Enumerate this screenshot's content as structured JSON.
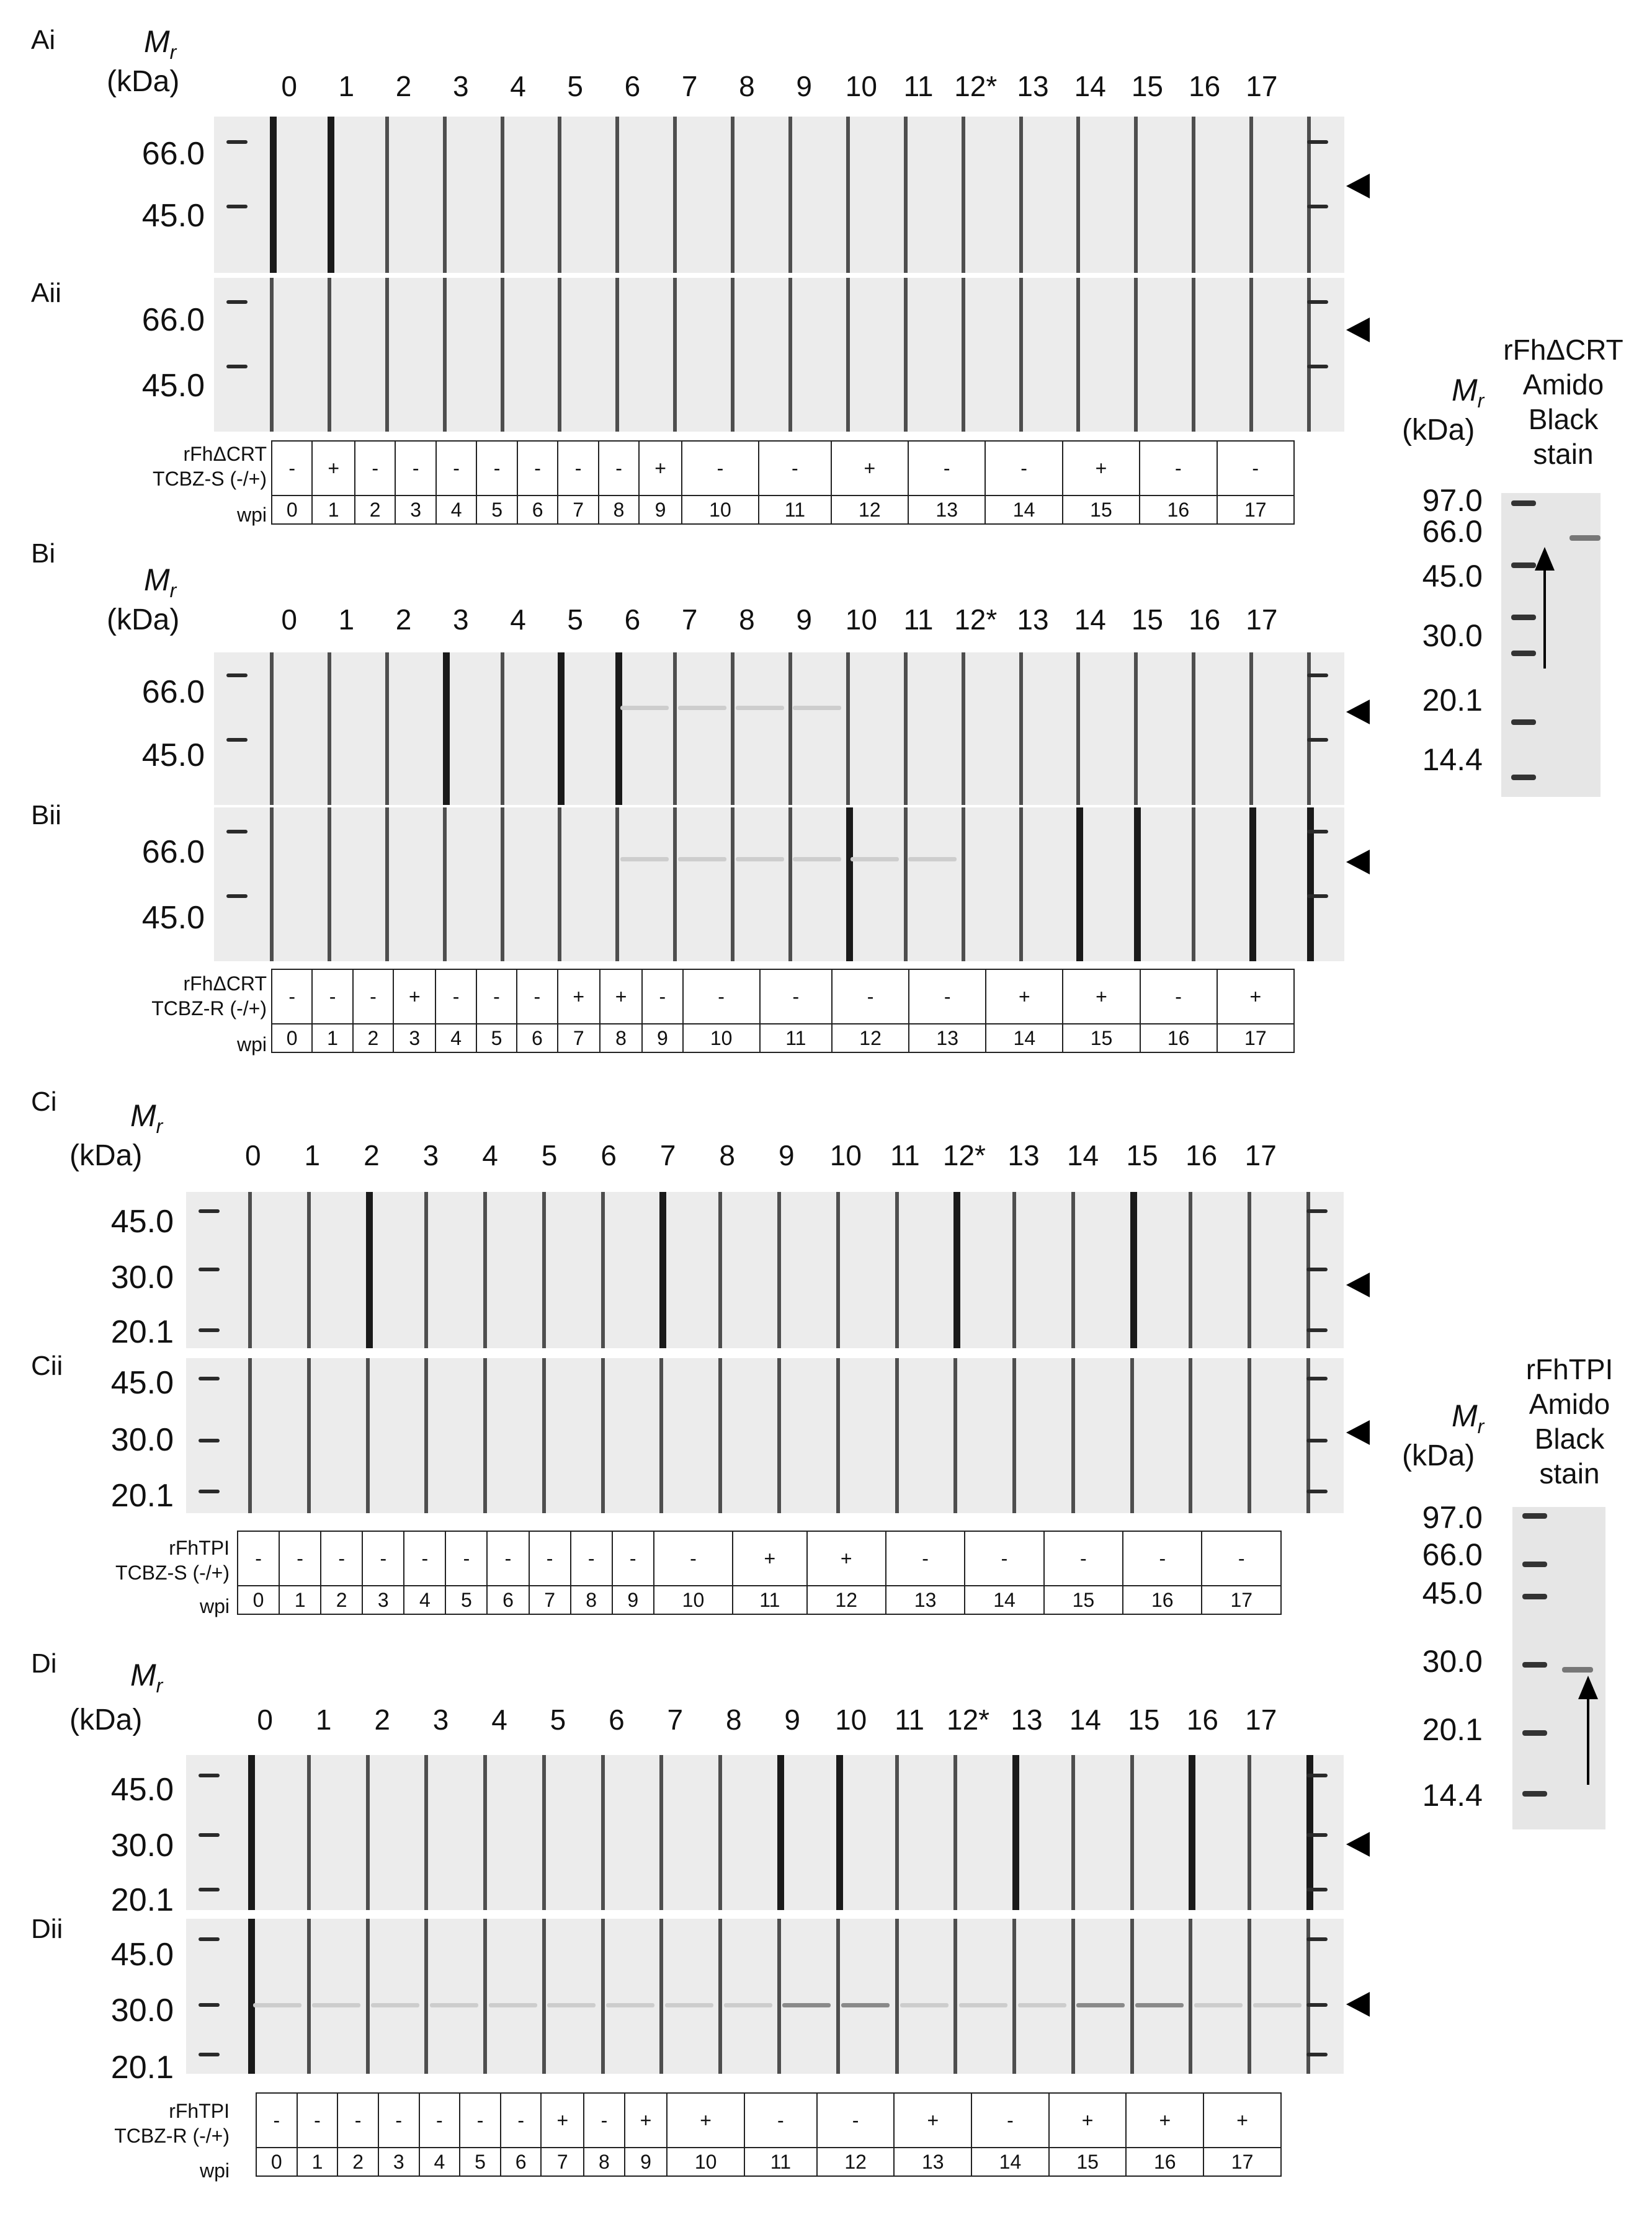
{
  "mr_label": "M",
  "mr_sub": "r",
  "kda_label": "(kDa)",
  "panels": [
    {
      "label": "Ai",
      "lanes": [
        "0",
        "1",
        "2",
        "3",
        "4",
        "5",
        "6",
        "7",
        "8",
        "9",
        "10",
        "11",
        "12*",
        "13",
        "14",
        "15",
        "16",
        "17"
      ],
      "mw": [
        "66.0",
        "45.0"
      ]
    },
    {
      "label": "Aii",
      "mw": [
        "66.0",
        "45.0"
      ]
    },
    {
      "label": "Bi",
      "lanes": [
        "0",
        "1",
        "2",
        "3",
        "4",
        "5",
        "6",
        "7",
        "8",
        "9",
        "10",
        "11",
        "12*",
        "13",
        "14",
        "15",
        "16",
        "17"
      ],
      "mw": [
        "66.0",
        "45.0"
      ]
    },
    {
      "label": "Bii",
      "mw": [
        "66.0",
        "45.0"
      ]
    },
    {
      "label": "Ci",
      "lanes": [
        "0",
        "1",
        "2",
        "3",
        "4",
        "5",
        "6",
        "7",
        "8",
        "9",
        "10",
        "11",
        "12*",
        "13",
        "14",
        "15",
        "16",
        "17"
      ],
      "mw": [
        "45.0",
        "30.0",
        "20.1"
      ]
    },
    {
      "label": "Cii",
      "mw": [
        "45.0",
        "30.0",
        "20.1"
      ]
    },
    {
      "label": "Di",
      "lanes": [
        "0",
        "1",
        "2",
        "3",
        "4",
        "5",
        "6",
        "7",
        "8",
        "9",
        "10",
        "11",
        "12*",
        "13",
        "14",
        "15",
        "16",
        "17"
      ],
      "mw": [
        "45.0",
        "30.0",
        "20.1"
      ]
    },
    {
      "label": "Dii",
      "mw": [
        "45.0",
        "30.0",
        "20.1"
      ]
    }
  ],
  "tables": [
    {
      "antigen": "rFhΔCRT",
      "group": "TCBZ-S (-/+)",
      "wpi_label": "wpi",
      "signs": [
        "-",
        "+",
        "-",
        "-",
        "-",
        "-",
        "-",
        "-",
        "-",
        "+",
        "-",
        "-",
        "+",
        "-",
        "-",
        "+",
        "-",
        "-"
      ],
      "wpi": [
        "0",
        "1",
        "2",
        "3",
        "4",
        "5",
        "6",
        "7",
        "8",
        "9",
        "10",
        "11",
        "12",
        "13",
        "14",
        "15",
        "16",
        "17"
      ]
    },
    {
      "antigen": "rFhΔCRT",
      "group": "TCBZ-R (-/+)",
      "wpi_label": "wpi",
      "signs": [
        "-",
        "-",
        "-",
        "+",
        "-",
        "-",
        "-",
        "+",
        "+",
        "-",
        "-",
        "-",
        "-",
        "-",
        "+",
        "+",
        "-",
        "+"
      ],
      "wpi": [
        "0",
        "1",
        "2",
        "3",
        "4",
        "5",
        "6",
        "7",
        "8",
        "9",
        "10",
        "11",
        "12",
        "13",
        "14",
        "15",
        "16",
        "17"
      ]
    },
    {
      "antigen": "rFhTPI",
      "group": "TCBZ-S (-/+)",
      "wpi_label": "wpi",
      "signs": [
        "-",
        "-",
        "-",
        "-",
        "-",
        "-",
        "-",
        "-",
        "-",
        "-",
        "-",
        "+",
        "+",
        "-",
        "-",
        "-",
        "-",
        "-"
      ],
      "wpi": [
        "0",
        "1",
        "2",
        "3",
        "4",
        "5",
        "6",
        "7",
        "8",
        "9",
        "10",
        "11",
        "12",
        "13",
        "14",
        "15",
        "16",
        "17"
      ]
    },
    {
      "antigen": "rFhTPI",
      "group": "TCBZ-R (-/+)",
      "wpi_label": "wpi",
      "signs": [
        "-",
        "-",
        "-",
        "-",
        "-",
        "-",
        "-",
        "+",
        "-",
        "+",
        "+",
        "-",
        "-",
        "+",
        "-",
        "+",
        "+",
        "+"
      ],
      "wpi": [
        "0",
        "1",
        "2",
        "3",
        "4",
        "5",
        "6",
        "7",
        "8",
        "9",
        "10",
        "11",
        "12",
        "13",
        "14",
        "15",
        "16",
        "17"
      ]
    }
  ],
  "stains": [
    {
      "title_lines": [
        "rFhΔCRT",
        "Amido",
        "Black",
        "stain"
      ],
      "mw": [
        "97.0",
        "66.0",
        "45.0",
        "30.0",
        "20.1",
        "14.4"
      ]
    },
    {
      "title_lines": [
        "rFhTPI",
        "Amido",
        "Black",
        "stain"
      ],
      "mw": [
        "97.0",
        "66.0",
        "45.0",
        "30.0",
        "20.1",
        "14.4"
      ]
    }
  ]
}
